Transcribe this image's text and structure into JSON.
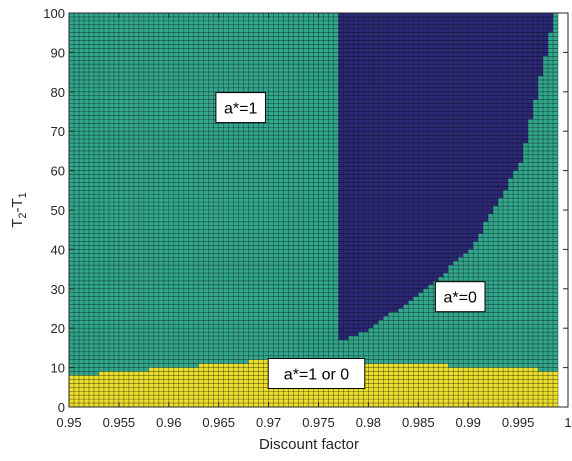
{
  "chart_data": {
    "type": "heatmap",
    "title": "",
    "xlabel": "Discount factor",
    "ylabel": {
      "main": "T",
      "sub1": "2",
      "sep": "-T",
      "sub2": "1"
    },
    "xlim": [
      0.95,
      1.0
    ],
    "ylim": [
      0,
      100
    ],
    "xticks": [
      0.95,
      0.955,
      0.96,
      0.965,
      0.97,
      0.975,
      0.98,
      0.985,
      0.99,
      0.995,
      1
    ],
    "xtick_labels": [
      "0.95",
      "0.955",
      "0.96",
      "0.965",
      "0.97",
      "0.975",
      "0.98",
      "0.985",
      "0.99",
      "0.995",
      "1"
    ],
    "yticks": [
      0,
      10,
      20,
      30,
      40,
      50,
      60,
      70,
      80,
      90,
      100
    ],
    "ytick_labels": [
      "0",
      "10",
      "20",
      "30",
      "40",
      "50",
      "60",
      "70",
      "80",
      "90",
      "100"
    ],
    "grid": {
      "discount_step": 0.0005,
      "t_step": 1,
      "discount_start": 0.95,
      "discount_end": 0.9985
    },
    "regions": [
      {
        "value": "a*=1",
        "color": "#31a88e"
      },
      {
        "value": "a*=0",
        "color": "#2c2878"
      },
      {
        "value": "a*=1 or 0",
        "color": "#ecdf2c"
      }
    ],
    "boundary_indifferent_upper": {
      "x": [
        0.95,
        0.955,
        0.96,
        0.965,
        0.97,
        0.975,
        0.98,
        0.985,
        0.99,
        0.995,
        0.9985
      ],
      "y": [
        8,
        9,
        10,
        11,
        12,
        12,
        11,
        11,
        10,
        10,
        9
      ]
    },
    "boundary_a0_lower": {
      "x": [
        0.977,
        0.98,
        0.985,
        0.99,
        0.995,
        0.9985
      ],
      "y": [
        17,
        20,
        29,
        40,
        62,
        100
      ]
    },
    "annotations": [
      {
        "text": "a*=1",
        "x": 0.9672,
        "y": 76
      },
      {
        "text": "a*=0",
        "x": 0.9892,
        "y": 28
      },
      {
        "text": "a*=1 or 0",
        "x": 0.9748,
        "y": 8.5
      }
    ]
  }
}
